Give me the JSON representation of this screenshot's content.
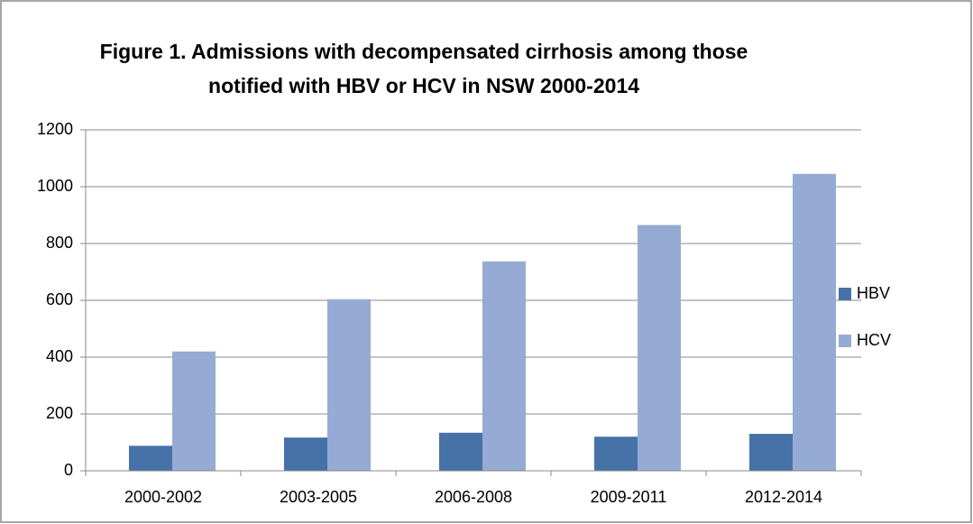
{
  "chart_data": {
    "type": "bar",
    "title": "Figure 1. Admissions with decompensated cirrhosis among those notified with HBV or HCV in NSW 2000-2014",
    "categories": [
      "2000-2002",
      "2003-2005",
      "2006-2008",
      "2009-2011",
      "2012-2014"
    ],
    "series": [
      {
        "name": "HBV",
        "color": "#4672a8",
        "values": [
          88,
          117,
          134,
          120,
          130
        ]
      },
      {
        "name": "HCV",
        "color": "#95abd3",
        "values": [
          420,
          604,
          737,
          865,
          1045
        ]
      }
    ],
    "ylim": [
      0,
      1200
    ],
    "yticks": [
      0,
      200,
      400,
      600,
      800,
      1000,
      1200
    ],
    "grid": true,
    "legend": "right"
  }
}
